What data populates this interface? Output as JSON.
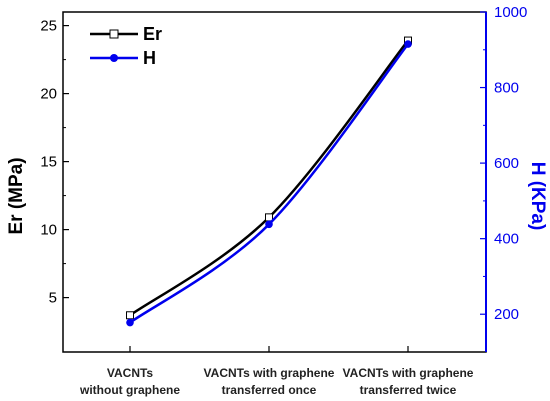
{
  "chart_data": {
    "type": "line",
    "categories": [
      [
        "VACNTs",
        "without graphene"
      ],
      [
        "VACNTs with graphene",
        "transferred once"
      ],
      [
        "VACNTs with graphene",
        "transferred twice"
      ]
    ],
    "series": [
      {
        "name": "Er",
        "axis": "left",
        "values": [
          3.7,
          10.9,
          23.9
        ],
        "color": "#000000",
        "marker": "open-square"
      },
      {
        "name": "H",
        "axis": "right",
        "values": [
          178,
          438,
          915
        ],
        "color": "#0000ee",
        "marker": "filled-circle"
      }
    ],
    "ylabel": "Er (MPa)",
    "y2label": "H (KPa)",
    "ylim": [
      1,
      26
    ],
    "y2lim": [
      100,
      1000
    ],
    "yticks": [
      5,
      10,
      15,
      20,
      25
    ],
    "y2ticks": [
      200,
      400,
      600,
      800,
      1000
    ],
    "legend_position": "top-left",
    "grid": false,
    "colors": {
      "left_axis": "#000000",
      "right_axis": "#0000ee"
    }
  }
}
